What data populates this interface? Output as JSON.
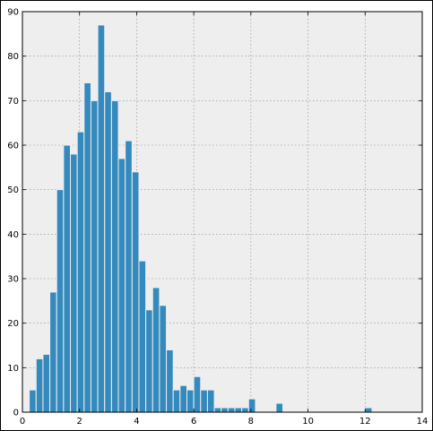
{
  "chart_data": {
    "type": "bar",
    "subtype": "histogram",
    "title": "",
    "xlabel": "",
    "ylabel": "",
    "xlim": [
      0,
      14
    ],
    "ylim": [
      0,
      90
    ],
    "xticks": [
      0,
      2,
      4,
      6,
      8,
      10,
      12,
      14
    ],
    "yticks": [
      0,
      10,
      20,
      30,
      40,
      50,
      60,
      70,
      80,
      90
    ],
    "grid": true,
    "legend": "none",
    "colors": {
      "bar": "#348abd",
      "bar_edge": "#eeeeee",
      "plot_background": "#eeeeee",
      "grid": "#888888"
    },
    "bin_width": 0.24,
    "bins": [
      {
        "x": 0.24,
        "count": 5
      },
      {
        "x": 0.48,
        "count": 12
      },
      {
        "x": 0.72,
        "count": 13
      },
      {
        "x": 0.96,
        "count": 27
      },
      {
        "x": 1.2,
        "count": 50
      },
      {
        "x": 1.44,
        "count": 60
      },
      {
        "x": 1.68,
        "count": 58
      },
      {
        "x": 1.92,
        "count": 63
      },
      {
        "x": 2.16,
        "count": 74
      },
      {
        "x": 2.4,
        "count": 70
      },
      {
        "x": 2.64,
        "count": 87
      },
      {
        "x": 2.88,
        "count": 72
      },
      {
        "x": 3.12,
        "count": 70
      },
      {
        "x": 3.36,
        "count": 57
      },
      {
        "x": 3.6,
        "count": 61
      },
      {
        "x": 3.84,
        "count": 54
      },
      {
        "x": 4.08,
        "count": 34
      },
      {
        "x": 4.32,
        "count": 23
      },
      {
        "x": 4.56,
        "count": 28
      },
      {
        "x": 4.8,
        "count": 24
      },
      {
        "x": 5.04,
        "count": 14
      },
      {
        "x": 5.28,
        "count": 5
      },
      {
        "x": 5.52,
        "count": 6
      },
      {
        "x": 5.76,
        "count": 5
      },
      {
        "x": 6.0,
        "count": 8
      },
      {
        "x": 6.24,
        "count": 5
      },
      {
        "x": 6.48,
        "count": 5
      },
      {
        "x": 6.72,
        "count": 1
      },
      {
        "x": 6.96,
        "count": 1
      },
      {
        "x": 7.2,
        "count": 1
      },
      {
        "x": 7.44,
        "count": 1
      },
      {
        "x": 7.68,
        "count": 1
      },
      {
        "x": 7.92,
        "count": 3
      },
      {
        "x": 8.88,
        "count": 2
      },
      {
        "x": 12.0,
        "count": 1
      }
    ]
  }
}
